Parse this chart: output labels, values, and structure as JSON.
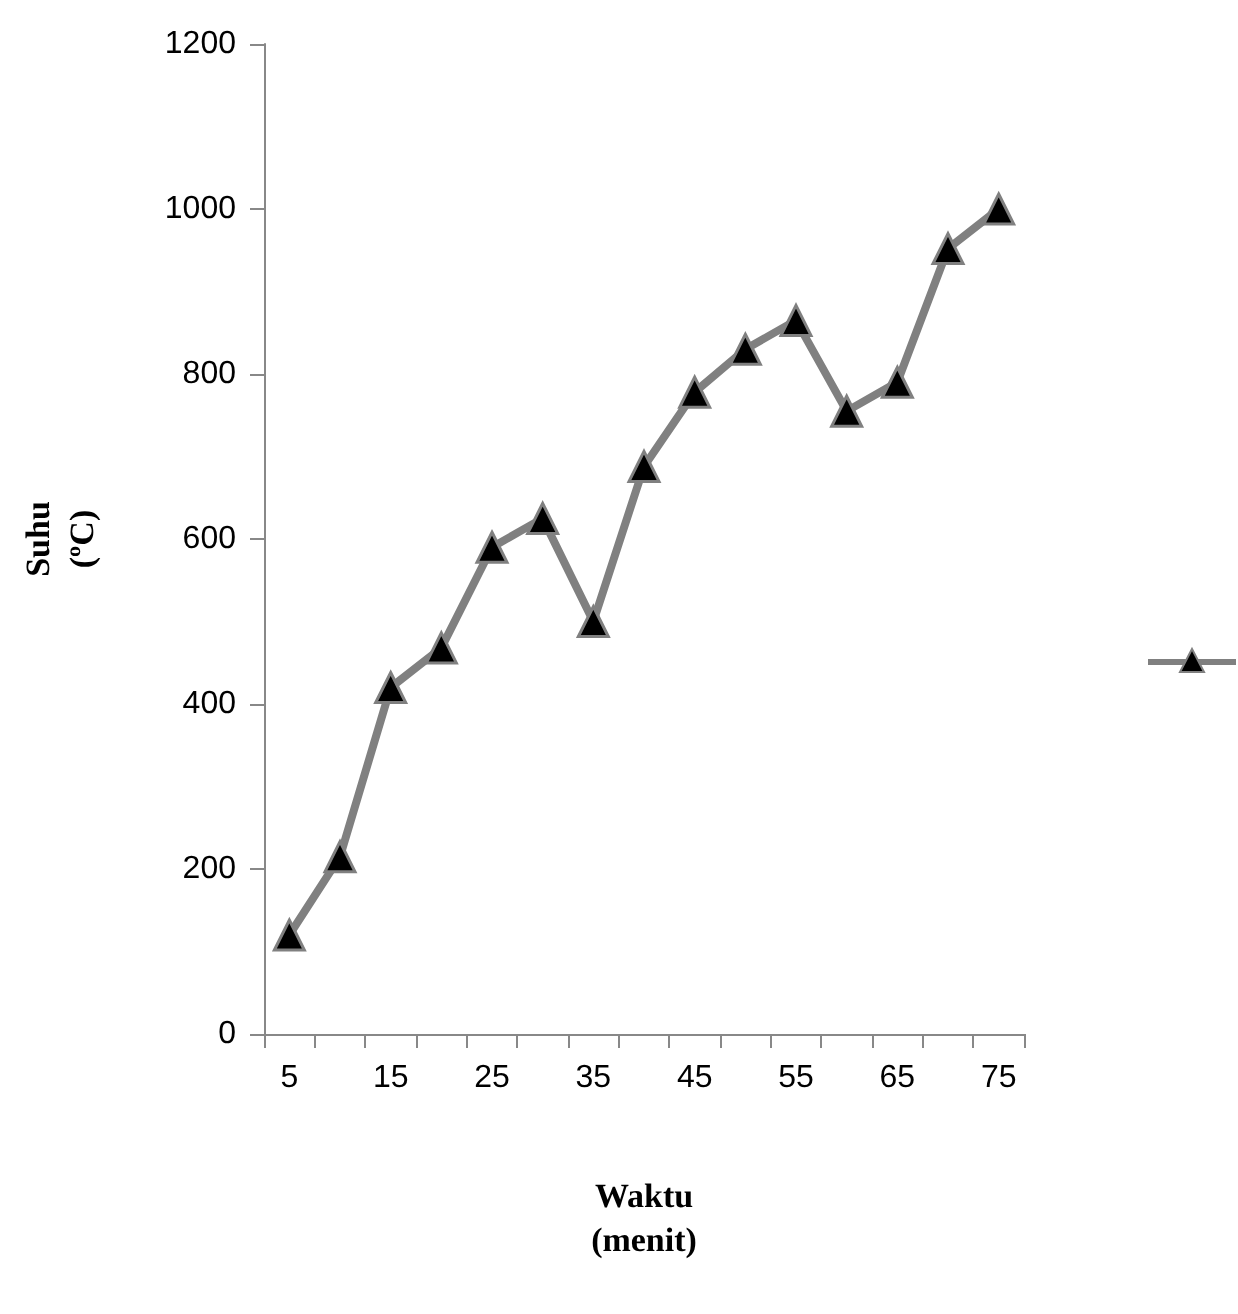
{
  "chart_data": {
    "type": "line",
    "xlabel": "Waktu\n(menit)",
    "ylabel": "Suhu\n(ºC)",
    "categories": [
      "5",
      null,
      "15",
      null,
      "25",
      null,
      "35",
      null,
      "45",
      null,
      "55",
      null,
      "65",
      null,
      "75"
    ],
    "series": [
      {
        "color": "#808080",
        "values": [
          120,
          215,
          420,
          468,
          590,
          625,
          500,
          688,
          778,
          830,
          865,
          755,
          790,
          952,
          1000
        ]
      }
    ],
    "ylim": [
      0,
      1200
    ],
    "yticks": [
      0,
      200,
      400,
      600,
      800,
      1000,
      1200
    ],
    "grid": false,
    "marker": "triangle",
    "line_style": "solid"
  }
}
